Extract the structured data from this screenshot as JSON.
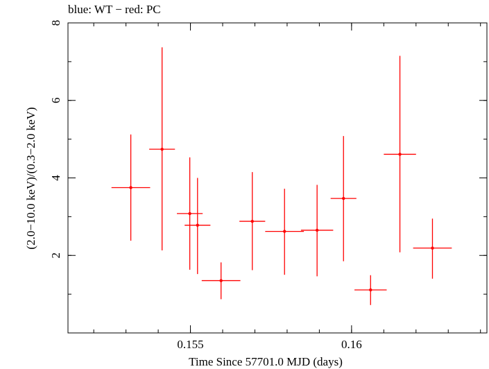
{
  "chart_data": {
    "type": "scatter",
    "title": "blue: WT − red: PC",
    "xlabel": "Time Since 57701.0 MJD (days)",
    "ylabel": "(2.0−10.0 keV)/(0.3−2.0 keV)",
    "xlim": [
      0.1512,
      0.1642
    ],
    "ylim": [
      0,
      8
    ],
    "x_ticks": [
      {
        "value": 0.155,
        "label": "0.155"
      },
      {
        "value": 0.16,
        "label": "0.16"
      }
    ],
    "y_ticks": [
      {
        "value": 2,
        "label": "2"
      },
      {
        "value": 4,
        "label": "4"
      },
      {
        "value": 6,
        "label": "6"
      },
      {
        "value": 8,
        "label": "8"
      }
    ],
    "x_minor_step": 0.001,
    "y_minor_step": 1,
    "grid": false,
    "series": [
      {
        "color": "#ff0000",
        "points": [
          {
            "x": 0.15522,
            "xerr": 0.0004,
            "y": 2.78,
            "ylo": 1.52,
            "yhi": 4.0
          },
          {
            "x": 0.15315,
            "xerr": 0.0006,
            "y": 3.75,
            "ylo": 2.38,
            "yhi": 5.12
          },
          {
            "x": 0.15412,
            "xerr": 0.0004,
            "y": 4.74,
            "ylo": 2.13,
            "yhi": 7.37
          },
          {
            "x": 0.15498,
            "xerr": 0.0004,
            "y": 3.08,
            "ylo": 1.63,
            "yhi": 4.53
          },
          {
            "x": 0.15595,
            "xerr": 0.0006,
            "y": 1.35,
            "ylo": 0.87,
            "yhi": 1.82
          },
          {
            "x": 0.15692,
            "xerr": 0.0004,
            "y": 2.88,
            "ylo": 1.62,
            "yhi": 4.15
          },
          {
            "x": 0.15792,
            "xerr": 0.0006,
            "y": 2.62,
            "ylo": 1.5,
            "yhi": 3.72
          },
          {
            "x": 0.15893,
            "xerr": 0.0005,
            "y": 2.65,
            "ylo": 1.46,
            "yhi": 3.82
          },
          {
            "x": 0.15975,
            "xerr": 0.0004,
            "y": 3.47,
            "ylo": 1.85,
            "yhi": 5.08
          },
          {
            "x": 0.16059,
            "xerr": 0.0005,
            "y": 1.11,
            "ylo": 0.72,
            "yhi": 1.49
          },
          {
            "x": 0.1615,
            "xerr": 0.0005,
            "y": 4.61,
            "ylo": 2.08,
            "yhi": 7.15
          },
          {
            "x": 0.16251,
            "xerr": 0.0006,
            "y": 2.19,
            "ylo": 1.4,
            "yhi": 2.95
          }
        ]
      }
    ]
  }
}
